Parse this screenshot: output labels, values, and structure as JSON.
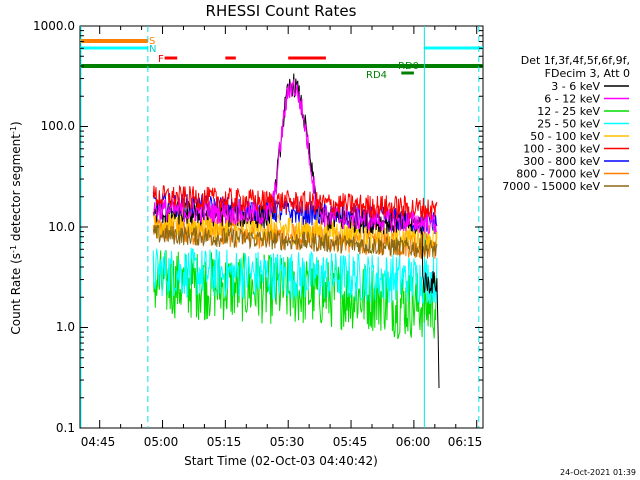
{
  "chart_data": {
    "type": "line",
    "title": "RHESSI Count Rates",
    "xlabel": "Start Time (02-Oct-03 04:40:42)",
    "ylabel_main": "Count Rate (s",
    "ylabel_sup1": "-1",
    "ylabel_mid": " detector segment",
    "ylabel_sup2": "-1",
    "ylabel_end": ")",
    "yscale": "log",
    "ylim": [
      0.1,
      1000
    ],
    "xlim_minutes": [
      -4.7,
      91.5
    ],
    "xtick_labels": [
      "04:45",
      "05:00",
      "05:15",
      "05:30",
      "05:45",
      "06:00",
      "06:15"
    ],
    "xtick_minutes": [
      0,
      15,
      30,
      45,
      60,
      75,
      90
    ],
    "ytick_labels": [
      "0.1",
      "1.0",
      "10.0",
      "100.0",
      "1000.0"
    ],
    "ytick_values": [
      0.1,
      1,
      10,
      100,
      1000
    ],
    "legend_header": [
      "Det 1f,3f,4f,5f,6f,9f,",
      "FDecim 3, Att 0"
    ],
    "legend_placement": "right",
    "series": [
      {
        "name": "3 - 6 keV",
        "color": "#000000"
      },
      {
        "name": "6 - 12 keV",
        "color": "#ff00ff"
      },
      {
        "name": "12 - 25 keV",
        "color": "#00dd00"
      },
      {
        "name": "25 - 50 keV",
        "color": "#00ffff"
      },
      {
        "name": "50 - 100 keV",
        "color": "#ffc000"
      },
      {
        "name": "100 - 300 keV",
        "color": "#ff0000"
      },
      {
        "name": "300 - 800 keV",
        "color": "#0000ff"
      },
      {
        "name": "800 - 7000 keV",
        "color": "#ff8000"
      },
      {
        "name": "7000 - 15000 keV",
        "color": "#8b6914"
      }
    ],
    "flag_labels": {
      "S": "S",
      "N": "N",
      "F": "F",
      "RD0": "RD0",
      "RD4": "RD4"
    },
    "flag_colors": {
      "S": "#ff8000",
      "N": "#00ffff",
      "F": "#ff0000",
      "RD0": "#008000",
      "RD4": "#008000"
    },
    "flag_intervals_minutes": {
      "S": [
        [
          -4.7,
          11.5
        ]
      ],
      "N": [
        [
          -4.7,
          11.5
        ],
        [
          77.5,
          91.5
        ]
      ],
      "F": [
        [
          15.5,
          18.5
        ],
        [
          30,
          32.5
        ],
        [
          45,
          54
        ]
      ],
      "RD0": [
        [
          -4.7,
          91.5
        ]
      ],
      "RD4": [
        [
          72,
          75
        ]
      ]
    },
    "vertical_markers_minutes": [
      {
        "minute": -4.5,
        "style": "solid"
      },
      {
        "minute": 11.5,
        "style": "dashed"
      },
      {
        "minute": 77.5,
        "style": "solid"
      },
      {
        "minute": 90.5,
        "style": "dashed"
      }
    ],
    "data_window_minutes": [
      12.8,
      80.5
    ],
    "flare_peak": {
      "minute": 46,
      "value": 260
    }
  },
  "timestamp": "24-Oct-2021 01:39"
}
